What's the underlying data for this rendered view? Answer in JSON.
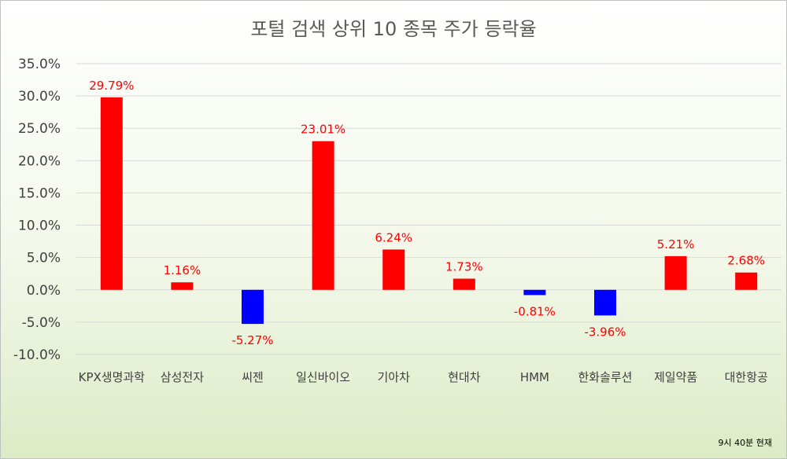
{
  "chart_data": {
    "type": "bar",
    "title": "포털 검색 상위 10 종목 주가 등락율",
    "categories": [
      "KPX생명과학",
      "삼성전자",
      "씨젠",
      "일신바이오",
      "기아차",
      "현대차",
      "HMM",
      "한화솔루션",
      "제일약품",
      "대한항공"
    ],
    "values": [
      29.79,
      1.16,
      -5.27,
      23.01,
      6.24,
      1.73,
      -0.81,
      -3.96,
      5.21,
      2.68
    ],
    "data_labels": [
      "29.79%",
      "1.16%",
      "-5.27%",
      "23.01%",
      "6.24%",
      "1.73%",
      "-0.81%",
      "-3.96%",
      "5.21%",
      "2.68%"
    ],
    "y_ticks": [
      35,
      30,
      25,
      20,
      15,
      10,
      5,
      0,
      -5,
      -10
    ],
    "y_tick_labels": [
      "35.0%",
      "30.0%",
      "25.0%",
      "20.0%",
      "15.0%",
      "10.0%",
      "5.0%",
      "0.0%",
      "-5.0%",
      "-10.0%"
    ],
    "ylim": [
      -10,
      35
    ],
    "grid": true,
    "colors": {
      "positive": "#ff0000",
      "negative": "#0000ff",
      "data_label": "#ff0000",
      "grid": "#d9d9d9"
    },
    "note": "9시 40분 현재"
  }
}
